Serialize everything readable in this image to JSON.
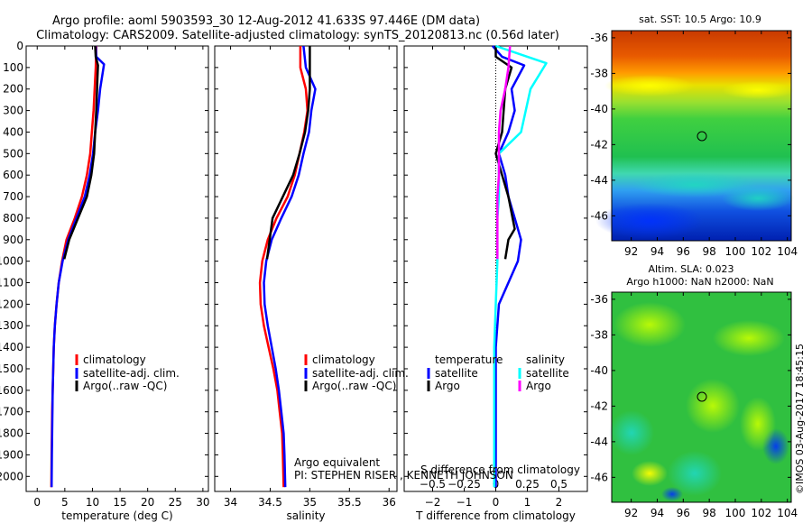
{
  "header": {
    "line1": "Argo profile: aoml 5903593_30 12-Aug-2012 41.633S 97.446E (DM data)",
    "line2": "Climatology: CARS2009. Satellite-adjusted climatology: synTS_20120813.nc (0.56d later)"
  },
  "colors": {
    "climatology": "#ff0000",
    "satellite": "#0000ff",
    "argo": "#000000",
    "argo_salinity": "#ff00ff",
    "satellite_salinity": "#00ffff"
  },
  "chart_data": [
    {
      "type": "line",
      "xlabel": "temperature (deg C)",
      "ylabel": "",
      "xlim": [
        -2,
        31
      ],
      "ylim": [
        2070,
        0
      ],
      "xticks": [
        0,
        5,
        10,
        15,
        20,
        25,
        30
      ],
      "yticks": [
        0,
        100,
        200,
        300,
        400,
        500,
        600,
        700,
        800,
        900,
        1000,
        1100,
        1200,
        1300,
        1400,
        1500,
        1600,
        1700,
        1800,
        1900,
        2000
      ],
      "legend": "center-right",
      "series": [
        {
          "name": "climatology",
          "color": "#ff0000",
          "x": [
            10.7,
            10.6,
            10.4,
            10.2,
            9.9,
            9.6,
            9.0,
            8.1,
            6.8,
            5.3,
            4.5,
            3.9,
            3.5,
            3.2,
            3.0,
            2.9,
            2.8,
            2.7,
            2.65,
            2.6,
            2.55
          ],
          "y": [
            0,
            100,
            200,
            300,
            400,
            500,
            600,
            700,
            800,
            900,
            1000,
            1100,
            1200,
            1300,
            1400,
            1500,
            1600,
            1700,
            1800,
            1900,
            2050
          ]
        },
        {
          "name": "satellite-adj. clim.",
          "color": "#0000ff",
          "x": [
            10.6,
            10.7,
            12.1,
            11.4,
            11.0,
            10.5,
            10.1,
            9.5,
            8.6,
            7.1,
            5.6,
            4.6,
            3.9,
            3.5,
            3.2,
            3.0,
            2.9,
            2.8,
            2.75,
            2.7,
            2.65,
            2.6
          ],
          "y": [
            0,
            50,
            85,
            200,
            300,
            400,
            500,
            600,
            700,
            800,
            900,
            1000,
            1100,
            1200,
            1300,
            1400,
            1500,
            1600,
            1700,
            1800,
            1900,
            2050
          ]
        },
        {
          "name": "Argo(..raw -QC)",
          "color": "#000000",
          "x": [
            10.5,
            10.6,
            11.0,
            10.9,
            10.7,
            10.3,
            9.8,
            9.0,
            7.4,
            5.8,
            4.9
          ],
          "y": [
            0,
            50,
            90,
            150,
            300,
            500,
            600,
            700,
            800,
            900,
            990
          ]
        }
      ]
    },
    {
      "type": "line",
      "xlabel": "salinity",
      "ylabel": "",
      "xlim": [
        33.8,
        36.1
      ],
      "ylim": [
        2070,
        0
      ],
      "xticks": [
        34,
        34.5,
        35,
        35.5,
        36
      ],
      "xticklabels": [
        "34",
        "34.5",
        "35",
        "35.5",
        "36"
      ],
      "legend": "center-right",
      "annotations": [
        "Argo equivalent",
        "PI: STEPHEN RISER , KENNETH JOHNSON"
      ],
      "series": [
        {
          "name": "climatology",
          "color": "#ff0000",
          "x": [
            34.88,
            34.88,
            34.95,
            34.97,
            34.93,
            34.87,
            34.81,
            34.72,
            34.58,
            34.47,
            34.4,
            34.37,
            34.38,
            34.42,
            34.48,
            34.54,
            34.59,
            34.62,
            34.65,
            34.66,
            34.67
          ],
          "y": [
            0,
            100,
            200,
            300,
            400,
            500,
            600,
            700,
            800,
            900,
            1000,
            1100,
            1200,
            1300,
            1400,
            1500,
            1600,
            1700,
            1800,
            1900,
            2050
          ]
        },
        {
          "name": "satellite-adj. clim.",
          "color": "#0000ff",
          "x": [
            34.92,
            34.95,
            35.07,
            35.02,
            34.99,
            34.92,
            34.86,
            34.77,
            34.64,
            34.52,
            34.45,
            34.42,
            34.43,
            34.47,
            34.52,
            34.57,
            34.61,
            34.64,
            34.67,
            34.68,
            34.69
          ],
          "y": [
            0,
            100,
            200,
            300,
            400,
            500,
            600,
            700,
            800,
            900,
            1000,
            1100,
            1200,
            1300,
            1400,
            1500,
            1600,
            1700,
            1800,
            1900,
            2050
          ]
        },
        {
          "name": "Argo(..raw -QC)",
          "color": "#000000",
          "x": [
            35.0,
            35.0,
            35.0,
            34.98,
            34.94,
            34.87,
            34.79,
            34.66,
            34.53,
            34.46
          ],
          "y": [
            0,
            100,
            200,
            300,
            400,
            500,
            600,
            700,
            800,
            990
          ]
        }
      ]
    },
    {
      "type": "line",
      "xlabel": "T difference from climatology",
      "ylabel": "",
      "title": "S difference from climatology",
      "xlim": [
        -2.9,
        2.9
      ],
      "ylim": [
        2070,
        0
      ],
      "xticks": [
        -2,
        -1,
        0,
        1,
        2
      ],
      "top_xticks": [
        -0.5,
        -0.25,
        0,
        0.25,
        0.5
      ],
      "top_xticklabels": [
        "−0.5",
        "−0.25",
        "0",
        "0.25",
        "0.5"
      ],
      "legend": "center-right",
      "legend_groups": [
        "temperature",
        "salinity"
      ],
      "series": [
        {
          "name": "temperature satellite",
          "color": "#0000ff",
          "x": [
            -0.1,
            0.2,
            0.9,
            0.5,
            0.6,
            0.4,
            0.1,
            0.3,
            0.4,
            0.6,
            0.8,
            0.7,
            0.1,
            0.0,
            0.0,
            0.0,
            0.0
          ],
          "y": [
            0,
            50,
            90,
            200,
            300,
            400,
            500,
            600,
            700,
            800,
            900,
            1000,
            1200,
            1400,
            1600,
            1800,
            2050
          ]
        },
        {
          "name": "temperature Argo",
          "color": "#000000",
          "x": [
            0.0,
            0.0,
            0.5,
            0.3,
            0.2,
            0.0,
            0.2,
            0.4,
            0.6,
            0.4,
            0.3
          ],
          "y": [
            0,
            50,
            100,
            200,
            400,
            500,
            600,
            700,
            850,
            900,
            990
          ]
        },
        {
          "name": "salinity satellite",
          "color": "#00ffff",
          "x": [
            0.0,
            1.0,
            1.6,
            1.1,
            0.8,
            0.1,
            0.1,
            0.1,
            0.05,
            0.05,
            0.0,
            -0.05,
            -0.05,
            -0.05,
            -0.05,
            -0.05
          ],
          "y": [
            0,
            50,
            80,
            200,
            400,
            500,
            600,
            700,
            800,
            1000,
            1200,
            1400,
            1600,
            1800,
            2000,
            2050
          ]
        },
        {
          "name": "salinity Argo",
          "color": "#ff00ff",
          "x": [
            0.45,
            0.4,
            0.3,
            0.15,
            0.1,
            0.1,
            0.1,
            0.05,
            0.05,
            0.05
          ],
          "y": [
            0,
            100,
            200,
            300,
            400,
            500,
            600,
            700,
            800,
            990
          ]
        }
      ]
    }
  ],
  "legend_labels": {
    "climatology": "climatology",
    "satellite": "satellite-adj. clim.",
    "argo": "Argo(..raw -QC)",
    "group_temperature": "temperature",
    "group_salinity": "salinity",
    "diff_satellite": "satellite",
    "diff_argo": "Argo"
  },
  "annotations": {
    "argo_equivalent": "Argo equivalent",
    "pi": "PI: STEPHEN RISER , KENNETH JOHNSON",
    "s_diff_title": "S difference from climatology",
    "footer": "©IMOS 03-Aug-2017 18:45:15"
  },
  "maps": {
    "sst": {
      "title": "sat. SST: 10.5 Argo: 10.9",
      "lon_ticks": [
        "92",
        "94",
        "96",
        "98",
        "100",
        "102",
        "104"
      ],
      "lat_ticks": [
        "-36",
        "-38",
        "-40",
        "-42",
        "-44",
        "-46"
      ],
      "lon_range": [
        90.5,
        104.3
      ],
      "lat_range": [
        -47.4,
        -35.6
      ],
      "profile_location": {
        "lon": 97.446,
        "lat": -41.633
      }
    },
    "sla": {
      "title1": "Altim. SLA: 0.023",
      "title2": "Argo h1000: NaN h2000: NaN",
      "lon_ticks": [
        "92",
        "94",
        "96",
        "98",
        "100",
        "102",
        "104"
      ],
      "lat_ticks": [
        "-36",
        "-38",
        "-40",
        "-42",
        "-44",
        "-46"
      ],
      "lon_range": [
        90.5,
        104.3
      ],
      "lat_range": [
        -47.4,
        -35.6
      ],
      "profile_location": {
        "lon": 97.446,
        "lat": -41.633
      }
    }
  }
}
